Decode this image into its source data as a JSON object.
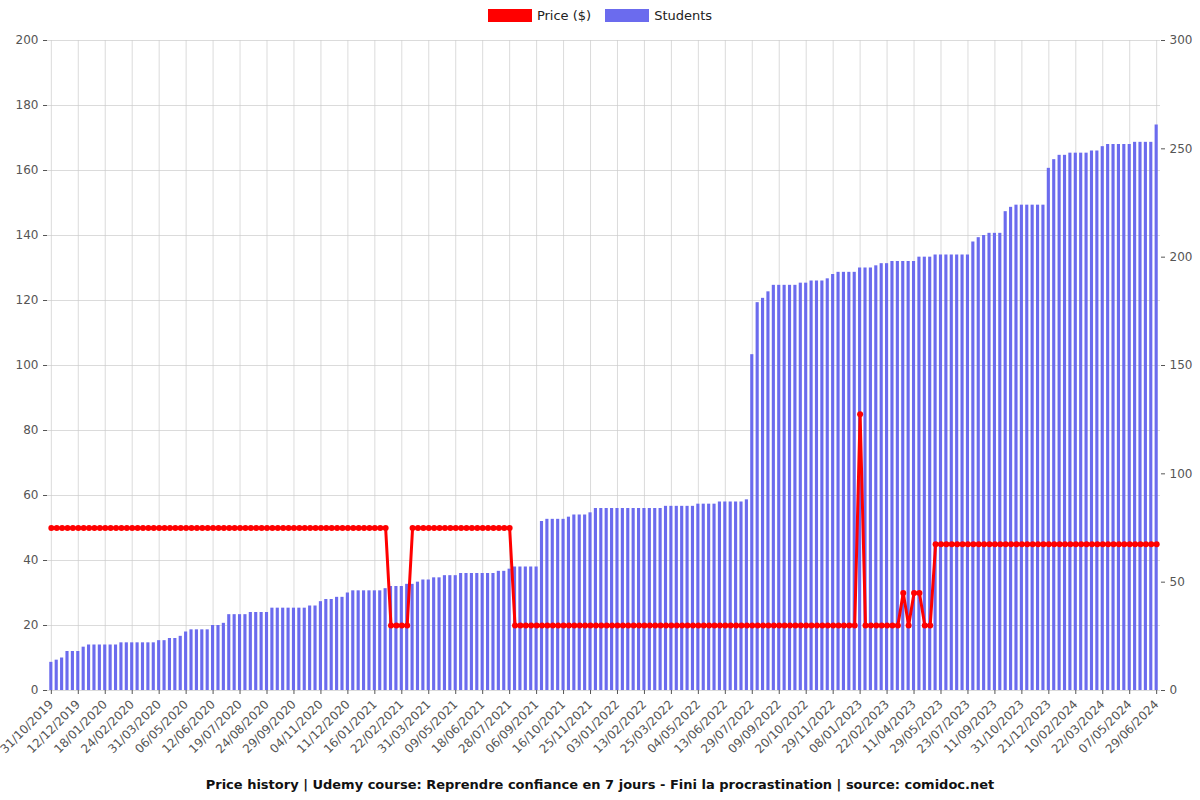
{
  "chart_data": {
    "type": "bar",
    "title": "Price history | Udemy course: Reprendre confiance en 7 jours  - Fini la procrastination | source: comidoc.net",
    "categories": [
      "31/10/2019",
      null,
      null,
      null,
      null,
      "12/12/2019",
      null,
      null,
      null,
      null,
      "18/01/2020",
      null,
      null,
      null,
      null,
      "24/02/2020",
      null,
      null,
      null,
      null,
      "31/03/2020",
      null,
      null,
      null,
      null,
      "06/05/2020",
      null,
      null,
      null,
      null,
      "12/06/2020",
      null,
      null,
      null,
      null,
      "19/07/2020",
      null,
      null,
      null,
      null,
      "24/08/2020",
      null,
      null,
      null,
      null,
      "29/09/2020",
      null,
      null,
      null,
      null,
      "04/11/2020",
      null,
      null,
      null,
      null,
      "11/12/2020",
      null,
      null,
      null,
      null,
      "16/01/2021",
      null,
      null,
      null,
      null,
      "22/02/2021",
      null,
      null,
      null,
      null,
      "31/03/2021",
      null,
      null,
      null,
      null,
      "09/05/2021",
      null,
      null,
      null,
      null,
      "18/06/2021",
      null,
      null,
      null,
      null,
      "28/07/2021",
      null,
      null,
      null,
      null,
      "06/09/2021",
      null,
      null,
      null,
      null,
      "16/10/2021",
      null,
      null,
      null,
      null,
      "25/11/2021",
      null,
      null,
      null,
      null,
      "03/01/2022",
      null,
      null,
      null,
      null,
      "13/02/2022",
      null,
      null,
      null,
      null,
      "25/03/2022",
      null,
      null,
      null,
      null,
      "04/05/2022",
      null,
      null,
      null,
      null,
      "13/06/2022",
      null,
      null,
      null,
      null,
      "29/07/2022",
      null,
      null,
      null,
      null,
      "09/09/2022",
      null,
      null,
      null,
      null,
      "20/10/2022",
      null,
      null,
      null,
      null,
      "29/11/2022",
      null,
      null,
      null,
      null,
      "08/01/2023",
      null,
      null,
      null,
      null,
      "22/02/2023",
      null,
      null,
      null,
      null,
      "11/04/2023",
      null,
      null,
      null,
      null,
      "29/05/2023",
      null,
      null,
      null,
      null,
      "23/07/2023",
      null,
      null,
      null,
      null,
      "11/09/2023",
      null,
      null,
      null,
      null,
      "31/10/2023",
      null,
      null,
      null,
      null,
      "21/12/2023",
      null,
      null,
      null,
      null,
      "10/02/2024",
      null,
      null,
      null,
      null,
      "22/03/2024",
      null,
      null,
      null,
      null,
      "07/05/2024",
      null,
      null,
      null,
      null,
      "29/06/2024"
    ],
    "series": [
      {
        "name": "Price ($)",
        "type": "line",
        "color": "#ff0000",
        "marker": "circle",
        "values": [
          50,
          50,
          50,
          50,
          50,
          50,
          50,
          50,
          50,
          50,
          50,
          50,
          50,
          50,
          50,
          50,
          50,
          50,
          50,
          50,
          50,
          50,
          50,
          50,
          50,
          50,
          50,
          50,
          50,
          50,
          50,
          50,
          50,
          50,
          50,
          50,
          50,
          50,
          50,
          50,
          50,
          50,
          50,
          50,
          50,
          50,
          50,
          50,
          50,
          50,
          50,
          50,
          50,
          50,
          50,
          50,
          50,
          50,
          50,
          50,
          50,
          50,
          50,
          20,
          20,
          20,
          20,
          50,
          50,
          50,
          50,
          50,
          50,
          50,
          50,
          50,
          50,
          50,
          50,
          50,
          50,
          50,
          50,
          50,
          50,
          50,
          20,
          20,
          20,
          20,
          20,
          20,
          20,
          20,
          20,
          20,
          20,
          20,
          20,
          20,
          20,
          20,
          20,
          20,
          20,
          20,
          20,
          20,
          20,
          20,
          20,
          20,
          20,
          20,
          20,
          20,
          20,
          20,
          20,
          20,
          20,
          20,
          20,
          20,
          20,
          20,
          20,
          20,
          20,
          20,
          20,
          20,
          20,
          20,
          20,
          20,
          20,
          20,
          20,
          20,
          20,
          20,
          20,
          20,
          20,
          20,
          20,
          20,
          20,
          20,
          85,
          20,
          20,
          20,
          20,
          20,
          20,
          20,
          30,
          20,
          30,
          30,
          20,
          20,
          45,
          45,
          45,
          45,
          45,
          45,
          45,
          45,
          45,
          45,
          45,
          45,
          45,
          45,
          45,
          45,
          45,
          45,
          45,
          45,
          45,
          45,
          45,
          45,
          45,
          45,
          45,
          45,
          45,
          45,
          45,
          45,
          45,
          45,
          45,
          45,
          45,
          45,
          45,
          45,
          45,
          45
        ]
      },
      {
        "name": "Students",
        "type": "bar",
        "color": "#6b6bee",
        "axis": "y2",
        "values": [
          13,
          14,
          15,
          18,
          18,
          18,
          20,
          21,
          21,
          21,
          21,
          21,
          21,
          22,
          22,
          22,
          22,
          22,
          22,
          22,
          23,
          23,
          24,
          24,
          25,
          27,
          28,
          28,
          28,
          28,
          30,
          30,
          31,
          35,
          35,
          35,
          35,
          36,
          36,
          36,
          36,
          38,
          38,
          38,
          38,
          38,
          38,
          38,
          39,
          39,
          41,
          42,
          42,
          43,
          43,
          45,
          46,
          46,
          46,
          46,
          46,
          46,
          47,
          48,
          48,
          48,
          49,
          49,
          50,
          51,
          51,
          52,
          52,
          53,
          53,
          53,
          54,
          54,
          54,
          54,
          54,
          54,
          54,
          55,
          55,
          56,
          57,
          57,
          57,
          57,
          57,
          78,
          79,
          79,
          79,
          79,
          80,
          81,
          81,
          81,
          82,
          84,
          84,
          84,
          84,
          84,
          84,
          84,
          84,
          84,
          84,
          84,
          84,
          84,
          85,
          85,
          85,
          85,
          85,
          85,
          86,
          86,
          86,
          86,
          87,
          87,
          87,
          87,
          87,
          88,
          155,
          179,
          181,
          184,
          187,
          187,
          187,
          187,
          187,
          188,
          188,
          189,
          189,
          189,
          190,
          192,
          193,
          193,
          193,
          193,
          195,
          195,
          195,
          196,
          197,
          197,
          198,
          198,
          198,
          198,
          198,
          200,
          200,
          200,
          201,
          201,
          201,
          201,
          201,
          201,
          201,
          207,
          209,
          210,
          211,
          211,
          211,
          221,
          223,
          224,
          224,
          224,
          224,
          224,
          224,
          241,
          245,
          247,
          247,
          248,
          248,
          248,
          248,
          249,
          249,
          251,
          252,
          252,
          252,
          252,
          252,
          253,
          253,
          253,
          253,
          261
        ]
      }
    ],
    "ylim": [
      0,
      200
    ],
    "yticks": [
      0,
      20,
      40,
      60,
      80,
      100,
      120,
      140,
      160,
      180,
      200
    ],
    "y2lim": [
      0,
      300
    ],
    "y2ticks": [
      0,
      50,
      100,
      150,
      200,
      250,
      300
    ],
    "grid": true,
    "legend": "top"
  }
}
